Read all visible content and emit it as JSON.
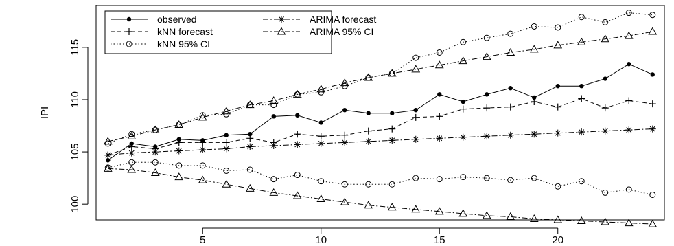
{
  "chart_data": {
    "type": "line",
    "title": "",
    "xlabel": "",
    "ylabel": "IPI",
    "xlim": [
      0.5,
      24.5
    ],
    "ylim": [
      98.5,
      119
    ],
    "x_ticks": [
      5,
      10,
      15,
      20
    ],
    "y_ticks": [
      100,
      105,
      110,
      115
    ],
    "grid": false,
    "legend_position": "top-left",
    "x": [
      1,
      2,
      3,
      4,
      5,
      6,
      7,
      8,
      9,
      10,
      11,
      12,
      13,
      14,
      15,
      16,
      17,
      18,
      19,
      20,
      21,
      22,
      23,
      24
    ],
    "series": [
      {
        "name": "observed",
        "style": "solid-line-filled-dot",
        "values": [
          104.2,
          105.8,
          105.5,
          106.2,
          106.1,
          106.6,
          106.7,
          108.4,
          108.5,
          107.8,
          109.0,
          108.7,
          108.7,
          109.0,
          110.5,
          109.8,
          110.5,
          111.1,
          110.2,
          111.3,
          111.3,
          112.0,
          113.4,
          112.4
        ]
      },
      {
        "name": "kNN forecast",
        "style": "dashed-line-plus",
        "values": [
          104.7,
          105.5,
          105.3,
          105.9,
          105.9,
          105.9,
          106.3,
          105.9,
          106.7,
          106.5,
          106.6,
          107.0,
          107.2,
          108.3,
          108.4,
          109.1,
          109.2,
          109.3,
          109.8,
          109.3,
          110.1,
          109.2,
          109.9,
          109.6
        ]
      },
      {
        "name": "kNN 95% CI",
        "style": "dotted-line-open-circle",
        "upper": [
          105.8,
          106.7,
          107.1,
          107.6,
          108.5,
          108.6,
          109.5,
          109.5,
          110.5,
          110.7,
          111.3,
          112.1,
          112.5,
          114.0,
          114.5,
          115.5,
          115.9,
          116.3,
          117.0,
          116.9,
          117.9,
          117.4,
          118.3,
          118.1
        ],
        "lower": [
          103.5,
          104.0,
          104.0,
          103.7,
          103.7,
          103.2,
          103.3,
          102.4,
          102.8,
          102.2,
          101.9,
          101.9,
          101.9,
          102.5,
          102.4,
          102.6,
          102.5,
          102.3,
          102.5,
          101.7,
          102.2,
          101.1,
          101.4,
          100.9
        ]
      },
      {
        "name": "ARIMA forecast",
        "style": "dashdot-line-asterisk",
        "values": [
          104.7,
          104.9,
          105.0,
          105.1,
          105.2,
          105.3,
          105.5,
          105.6,
          105.7,
          105.8,
          105.9,
          106.0,
          106.1,
          106.2,
          106.3,
          106.4,
          106.5,
          106.6,
          106.7,
          106.8,
          106.9,
          107.0,
          107.1,
          107.2
        ]
      },
      {
        "name": "ARIMA 95% CI",
        "style": "dashdot-line-triangle",
        "upper": [
          106.0,
          106.5,
          107.1,
          107.6,
          108.3,
          108.9,
          109.5,
          109.9,
          110.5,
          111.0,
          111.6,
          112.1,
          112.5,
          112.9,
          113.3,
          113.7,
          114.1,
          114.5,
          114.8,
          115.2,
          115.5,
          115.8,
          116.1,
          116.5
        ],
        "lower": [
          103.4,
          103.3,
          103.0,
          102.6,
          102.3,
          101.9,
          101.5,
          101.1,
          100.8,
          100.5,
          100.2,
          99.9,
          99.7,
          99.5,
          99.3,
          99.1,
          98.9,
          98.8,
          98.6,
          98.5,
          98.4,
          98.3,
          98.2,
          98.1
        ]
      }
    ]
  }
}
